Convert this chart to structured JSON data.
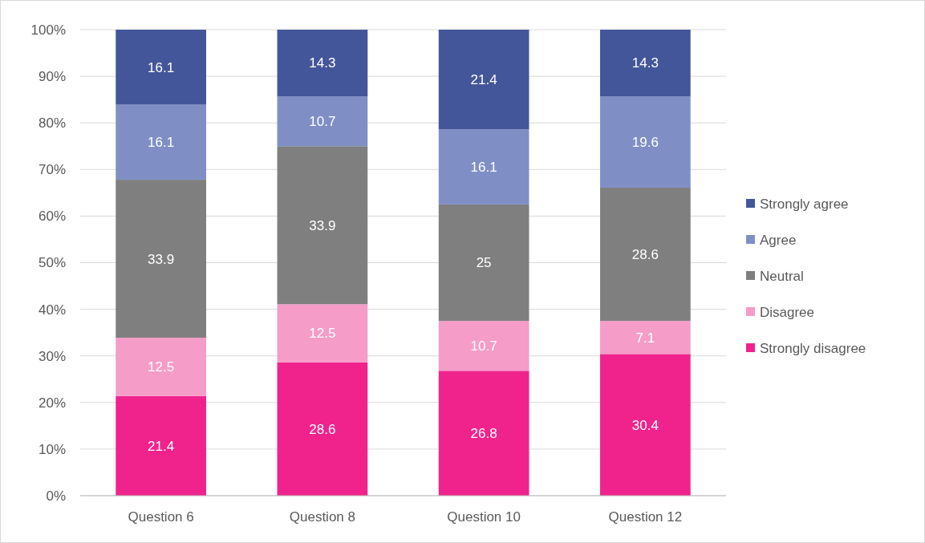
{
  "chart_data": {
    "type": "bar",
    "stacked": true,
    "categories": [
      "Question 6",
      "Question 8",
      "Question 10",
      "Question 12"
    ],
    "series": [
      {
        "name": "Strongly disagree",
        "color": "#f0238c",
        "values": [
          21.4,
          28.6,
          26.8,
          30.4
        ]
      },
      {
        "name": "Disagree",
        "color": "#f59cc9",
        "values": [
          12.5,
          12.5,
          10.7,
          7.1
        ]
      },
      {
        "name": "Neutral",
        "color": "#7f7f7f",
        "values": [
          33.9,
          33.9,
          25,
          28.6
        ]
      },
      {
        "name": "Agree",
        "color": "#7f8fc6",
        "values": [
          16.1,
          10.7,
          16.1,
          19.6
        ]
      },
      {
        "name": "Strongly agree",
        "color": "#44569a",
        "values": [
          16.1,
          14.3,
          21.4,
          14.3
        ]
      }
    ],
    "ylim": [
      0,
      100
    ],
    "yticks": [
      {
        "value": 0,
        "label": "0%"
      },
      {
        "value": 10,
        "label": "10%"
      },
      {
        "value": 20,
        "label": "20%"
      },
      {
        "value": 30,
        "label": "30%"
      },
      {
        "value": 40,
        "label": "40%"
      },
      {
        "value": 50,
        "label": "50%"
      },
      {
        "value": 60,
        "label": "60%"
      },
      {
        "value": 70,
        "label": "70%"
      },
      {
        "value": 80,
        "label": "80%"
      },
      {
        "value": 90,
        "label": "90%"
      },
      {
        "value": 100,
        "label": "100%"
      }
    ],
    "grid": "y",
    "legend": "right",
    "data_labels": true
  }
}
